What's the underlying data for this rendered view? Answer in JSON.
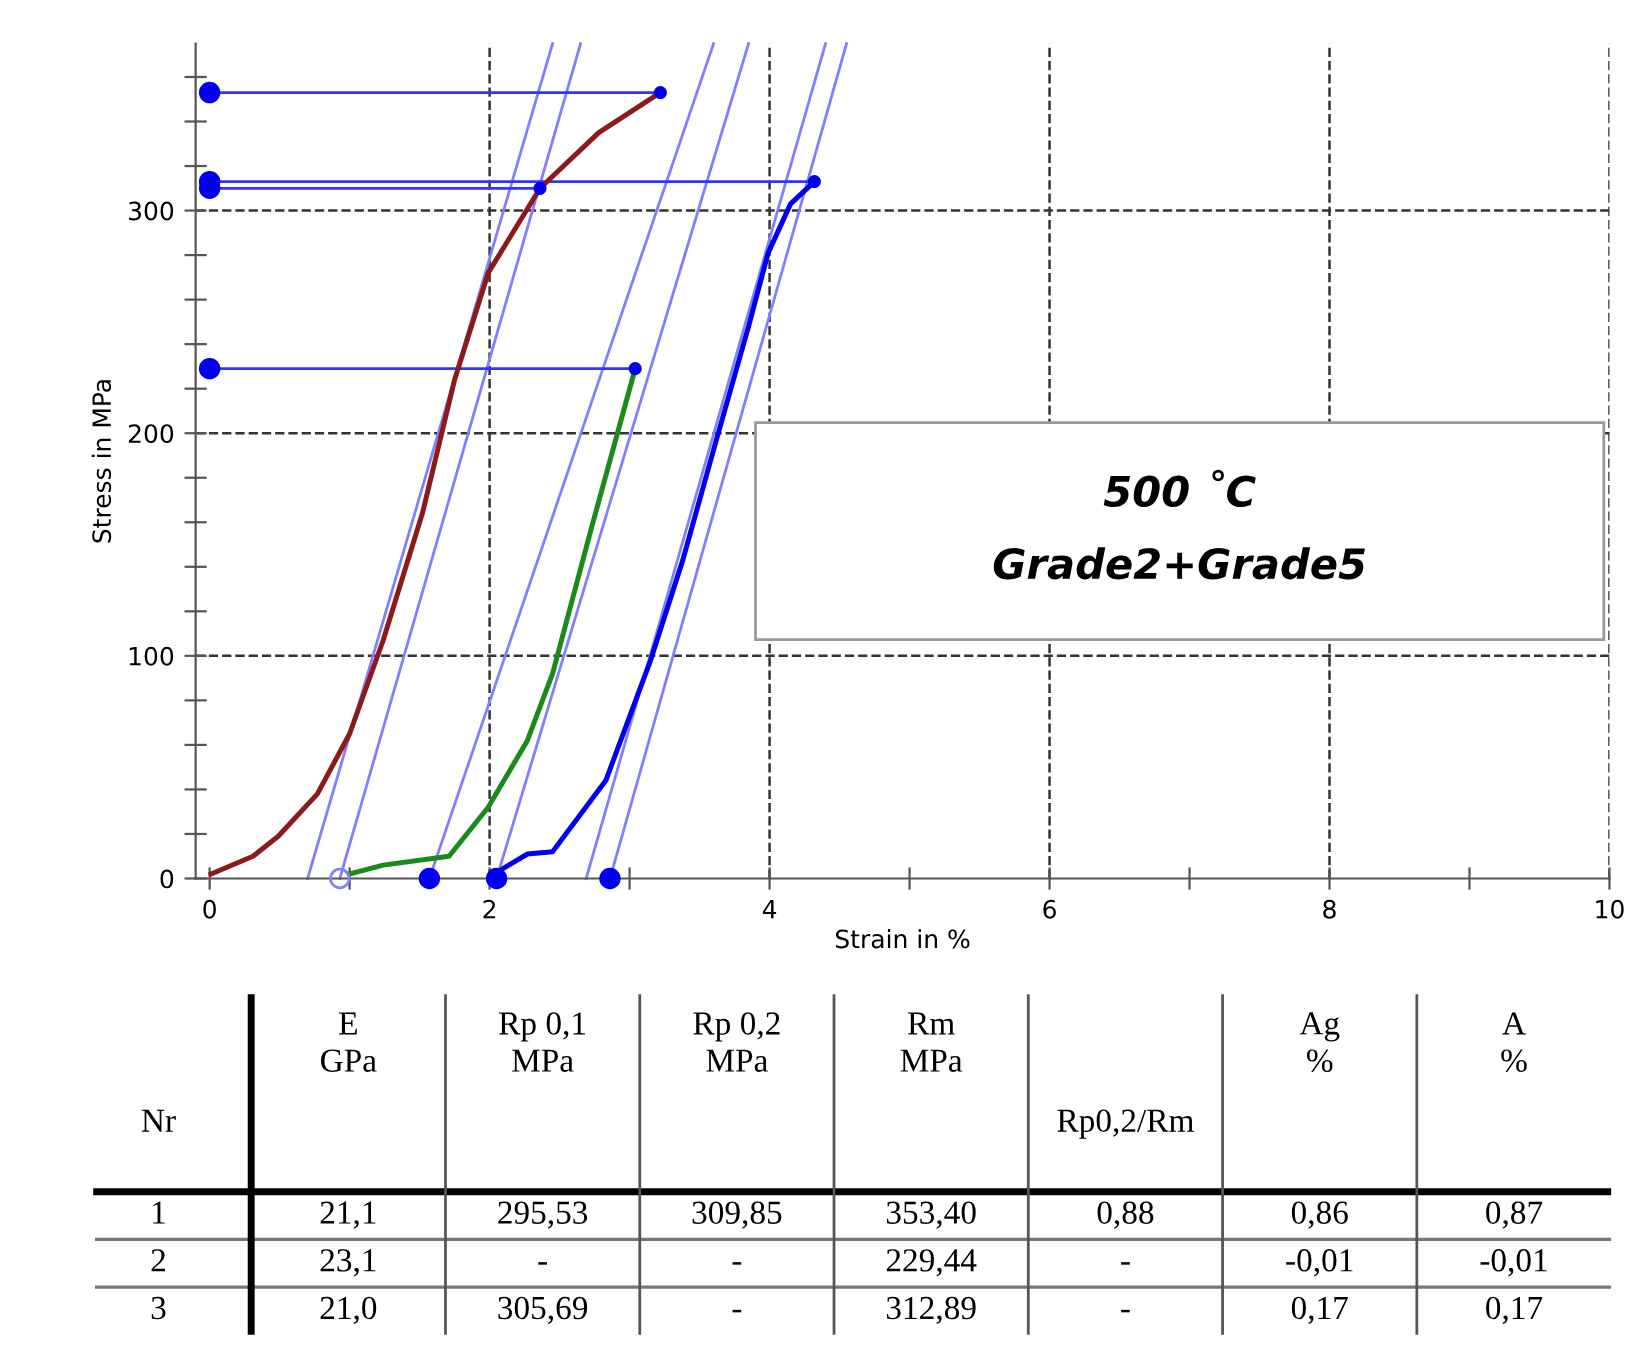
{
  "chart_data": [
    {
      "type": "line",
      "xlabel": "Strain in %",
      "ylabel": "Stress in MPa",
      "xlim": [
        -0.1,
        10
      ],
      "ylim": [
        0,
        375
      ],
      "xticks": [
        0,
        {
          "value": 1,
          "label": null
        },
        2,
        {
          "value": 3,
          "label": null
        },
        4,
        {
          "value": 5,
          "label": null
        },
        6,
        {
          "value": 7,
          "label": null
        },
        8,
        {
          "value": 9,
          "label": null
        },
        10
      ],
      "yticks": [
        0,
        {
          "value": 20,
          "label": null
        },
        {
          "value": 40,
          "label": null
        },
        {
          "value": 60,
          "label": null
        },
        {
          "value": 80,
          "label": null
        },
        100,
        {
          "value": 120,
          "label": null
        },
        {
          "value": 140,
          "label": null
        },
        {
          "value": 160,
          "label": null
        },
        {
          "value": 180,
          "label": null
        },
        200,
        {
          "value": 220,
          "label": null
        },
        {
          "value": 240,
          "label": null
        },
        {
          "value": 260,
          "label": null
        },
        {
          "value": 280,
          "label": null
        },
        300,
        {
          "value": 320,
          "label": null
        },
        {
          "value": 340,
          "label": null
        },
        {
          "value": 360,
          "label": null
        }
      ],
      "grid": true,
      "legend": false,
      "annotations": [
        "500 ˚C",
        "Grade2+Grade5"
      ],
      "series": [
        {
          "color": "#8080ff",
          "x": [
            0.7,
            2.45
          ],
          "values": [
            0,
            375
          ],
          "marker": "none"
        },
        {
          "color": "#8080ff",
          "x": [
            0.93,
            2.65
          ],
          "values": [
            0,
            375
          ],
          "marker": "none"
        },
        {
          "color": "#8080ff",
          "x": [
            1.57,
            3.6
          ],
          "values": [
            0,
            375
          ],
          "marker": "none"
        },
        {
          "color": "#8080ff",
          "x": [
            2.05,
            3.85
          ],
          "values": [
            0,
            375
          ],
          "marker": "none"
        },
        {
          "color": "#8080ff",
          "x": [
            2.69,
            4.4
          ],
          "values": [
            0,
            375
          ],
          "marker": "none"
        },
        {
          "color": "#8080ff",
          "x": [
            2.86,
            4.55
          ],
          "values": [
            0,
            375
          ],
          "marker": "none"
        },
        {
          "color": "#3333ff",
          "x": [
            0,
            3.22
          ],
          "values": [
            353,
            353
          ],
          "marker": "none"
        },
        {
          "color": "#3333ff",
          "x": [
            0,
            4.32
          ],
          "values": [
            313,
            313
          ],
          "marker": "none"
        },
        {
          "color": "#3333ff",
          "x": [
            0,
            2.36
          ],
          "values": [
            310,
            310
          ],
          "marker": "none"
        },
        {
          "color": "#3333ff",
          "x": [
            0,
            3.04
          ],
          "values": [
            229,
            229
          ],
          "marker": "none"
        },
        {
          "color": "#8b1a1a",
          "x": [
            0.01,
            0.31,
            0.49,
            0.77,
            1.0,
            1.24,
            1.52,
            1.75,
            1.99,
            2.36,
            2.78,
            3.22
          ],
          "values": [
            2,
            10,
            19,
            38,
            65,
            107,
            164,
            224,
            272,
            310,
            335,
            353
          ],
          "marker": "none"
        },
        {
          "color": "#1a8a1a",
          "x": [
            1.0,
            1.24,
            1.71,
            1.99,
            2.27,
            2.45,
            2.73,
            3.04
          ],
          "values": [
            2,
            6,
            10,
            32,
            62,
            92,
            158,
            229
          ],
          "marker": "none"
        },
        {
          "color": "#0000ee",
          "x": [
            2.03,
            2.27,
            2.45,
            2.83,
            3.15,
            3.38,
            3.62,
            3.85,
            3.99,
            4.15,
            4.32
          ],
          "values": [
            2,
            11,
            12,
            44,
            98,
            143,
            197,
            248,
            281,
            303,
            313
          ],
          "marker": "none"
        },
        {
          "type": "scatter",
          "color": "#0000ee",
          "x": [
            0,
            0,
            0,
            0,
            1.57,
            2.05,
            2.86
          ],
          "values": [
            353,
            313,
            310,
            229,
            0,
            0,
            0
          ],
          "marker": "circle"
        },
        {
          "type": "scatter",
          "color": "#0000ee",
          "x": [
            3.22,
            4.32,
            2.36,
            3.04
          ],
          "values": [
            353,
            313,
            310,
            229
          ],
          "marker": "circle"
        },
        {
          "type": "scatter",
          "color": "#8080ff",
          "x": [
            0.93
          ],
          "values": [
            0
          ],
          "marker": "circle"
        }
      ]
    },
    {
      "type": "other",
      "categories": [
        "Nr",
        "E\nGPa",
        "Rp 0,1\nMPa",
        "Rp 0,2\nMPa",
        "Rm\nMPa",
        "Rp0,2/Rm",
        "Ag\n%",
        "A\n%"
      ],
      "cell_labels": [
        [
          "1",
          "21,1",
          "295,53",
          "309,85",
          "353,40",
          "0,88",
          "0,86",
          "0,87"
        ],
        [
          "2",
          "23,1",
          "-",
          "-",
          "229,44",
          "-",
          "-0,01",
          "-0,01"
        ],
        [
          "3",
          "21,0",
          "305,69",
          "-",
          "312,89",
          "-",
          "0,17",
          "0,17"
        ]
      ]
    }
  ]
}
